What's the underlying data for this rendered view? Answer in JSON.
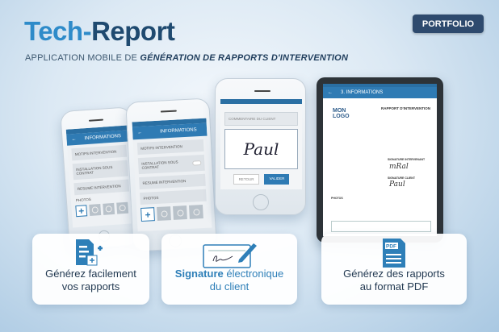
{
  "header": {
    "title_part1": "Tech-",
    "title_part2": "Report",
    "subtitle_plain": "APPLICATION MOBILE DE ",
    "subtitle_bold": "GÉNÉRATION DE RAPPORTS D'INTERVENTION",
    "portfolio_button": "PORTFOLIO"
  },
  "colors": {
    "accent": "#2e8bc9",
    "dark_blue": "#1f4a70",
    "button": "#2e4a6e",
    "app_header": "#2f7bb4"
  },
  "phone1": {
    "header": "INFORMATIONS",
    "items": [
      "MOTIFS INTERVENTION",
      "INSTALLATION SOUS CONTRAT",
      "RESUME INTERVENTION"
    ],
    "photos_label": "PHOTOS"
  },
  "phone2": {
    "header": "INFORMATIONS",
    "items": [
      "MOTIFS INTERVENTION",
      "INSTALLATION SOUS CONTRAT",
      "RESUME INTERVENTION"
    ],
    "photos_label": "PHOTOS"
  },
  "phone3": {
    "comment_placeholder": "COMMENTAIRE DU CLIENT",
    "signature": "Paul",
    "back_button": "RETOUR",
    "validate_button": "VALIDER"
  },
  "tablet": {
    "header": "3. INFORMATIONS",
    "logo_line1": "MON",
    "logo_line2": "LOGO",
    "doc_title": "RAPPORT D'INTERVENTION",
    "sign_tech": "SIGNATURE INTERVENANT",
    "sign_client": "SIGNATURE CLIENT",
    "photos": "PHOTOS"
  },
  "features": [
    {
      "icon": "document-add-icon",
      "line1": "Générez facilement",
      "line2": "vos rapports"
    },
    {
      "icon": "signature-pen-icon",
      "line1_bold": "Signature",
      "line1_rest": " électronique",
      "line2": "du client"
    },
    {
      "icon": "pdf-icon",
      "line1": "Générez des rapports",
      "line2": "au format PDF",
      "icon_text": "PDF"
    }
  ]
}
